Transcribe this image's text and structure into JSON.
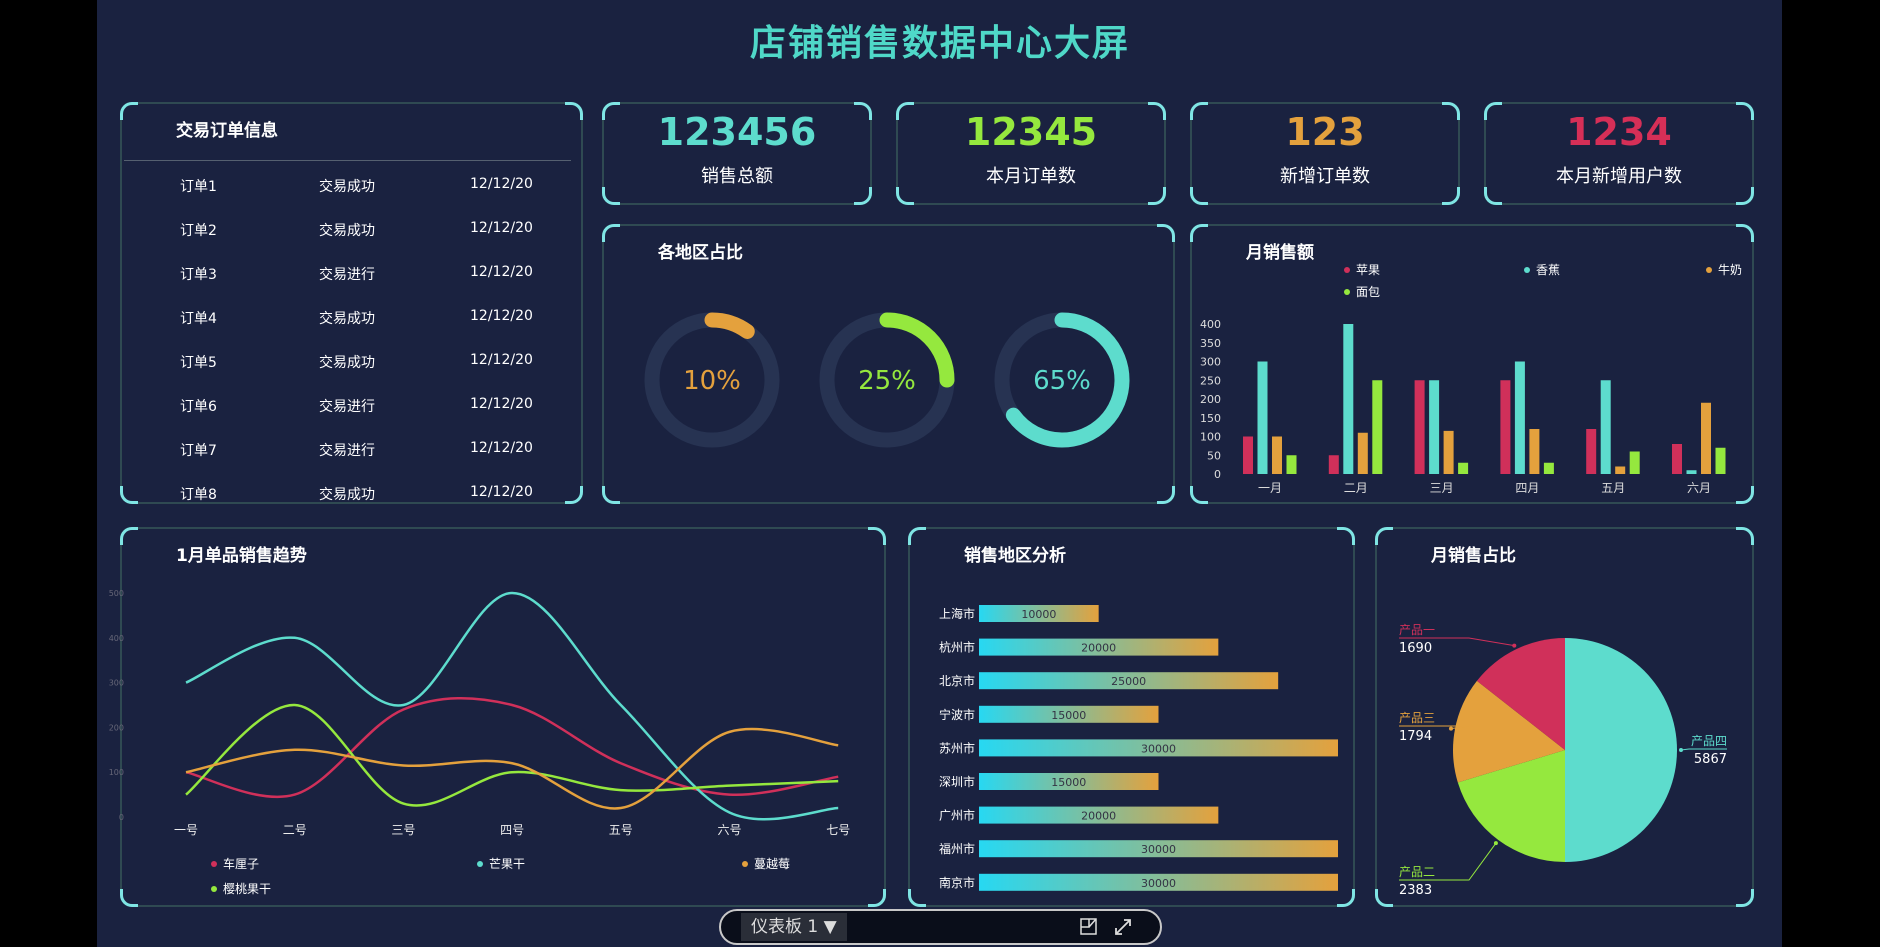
{
  "title": "店铺销售数据中心大屏",
  "orders": {
    "title": "交易订单信息",
    "rows": [
      {
        "id": "订单1",
        "status": "交易成功",
        "date": "12/12/20"
      },
      {
        "id": "订单2",
        "status": "交易成功",
        "date": "12/12/20"
      },
      {
        "id": "订单3",
        "status": "交易进行",
        "date": "12/12/20"
      },
      {
        "id": "订单4",
        "status": "交易成功",
        "date": "12/12/20"
      },
      {
        "id": "订单5",
        "status": "交易成功",
        "date": "12/12/20"
      },
      {
        "id": "订单6",
        "status": "交易进行",
        "date": "12/12/20"
      },
      {
        "id": "订单7",
        "status": "交易进行",
        "date": "12/12/20"
      },
      {
        "id": "订单8",
        "status": "交易成功",
        "date": "12/12/20"
      }
    ]
  },
  "kpis": [
    {
      "value": "123456",
      "label": "销售总额",
      "color": "#5ddccd"
    },
    {
      "value": "12345",
      "label": "本月订单数",
      "color": "#95e83e"
    },
    {
      "value": "123",
      "label": "新增订单数",
      "color": "#e4a13d"
    },
    {
      "value": "1234",
      "label": "本月新增用户数",
      "color": "#d62f57"
    }
  ],
  "region_ratio": {
    "title": "各地区占比",
    "items": [
      {
        "label": "10%",
        "value": 10,
        "color": "#e4a13d"
      },
      {
        "label": "25%",
        "value": 25,
        "color": "#95e83e"
      },
      {
        "label": "65%",
        "value": 65,
        "color": "#5ddccd"
      }
    ]
  },
  "chart_data": [
    {
      "type": "bar",
      "title": "月销售额",
      "categories": [
        "一月",
        "二月",
        "三月",
        "四月",
        "五月",
        "六月"
      ],
      "ylim": [
        0,
        400
      ],
      "yticks": [
        "0",
        "50",
        "100",
        "150",
        "200",
        "250",
        "300",
        "350",
        "400"
      ],
      "legend": "top",
      "series": [
        {
          "name": "苹果",
          "color": "#d0305a",
          "values": [
            100,
            50,
            250,
            250,
            120,
            80
          ]
        },
        {
          "name": "香蕉",
          "color": "#5ddccd",
          "values": [
            300,
            400,
            250,
            300,
            250,
            10
          ]
        },
        {
          "name": "牛奶",
          "color": "#e4a13d",
          "values": [
            100,
            110,
            115,
            120,
            20,
            190
          ]
        },
        {
          "name": "面包",
          "color": "#95e83e",
          "values": [
            50,
            250,
            30,
            30,
            60,
            70
          ]
        }
      ]
    },
    {
      "type": "line",
      "title": "1月单品销售趋势",
      "categories": [
        "一号",
        "二号",
        "三号",
        "四号",
        "五号",
        "六号",
        "七号"
      ],
      "ylim": [
        0,
        500
      ],
      "yticks": [
        "0",
        "100",
        "200",
        "300",
        "400",
        "500"
      ],
      "smooth": true,
      "legend": "bottom",
      "series": [
        {
          "name": "车厘子",
          "color": "#d0305a",
          "values": [
            100,
            50,
            240,
            250,
            120,
            50,
            90
          ]
        },
        {
          "name": "芒果干",
          "color": "#5ddccd",
          "values": [
            300,
            400,
            250,
            500,
            250,
            10,
            20
          ]
        },
        {
          "name": "樱桃果干",
          "color": "#95e83e",
          "values": [
            50,
            250,
            30,
            100,
            60,
            70,
            80
          ]
        },
        {
          "name": "蔓越莓",
          "color": "#e4a13d",
          "values": [
            100,
            150,
            115,
            120,
            20,
            190,
            160
          ]
        }
      ]
    },
    {
      "type": "bar",
      "orientation": "horizontal",
      "title": "销售地区分析",
      "categories": [
        "上海市",
        "杭州市",
        "北京市",
        "宁波市",
        "苏州市",
        "深圳市",
        "广州市",
        "福州市",
        "南京市"
      ],
      "values": [
        10000,
        20000,
        25000,
        15000,
        30000,
        15000,
        20000,
        30000,
        30000
      ],
      "gradient": [
        "#27d8f2",
        "#e4a13d"
      ]
    },
    {
      "type": "pie",
      "title": "月销售占比",
      "slices": [
        {
          "name": "产品四",
          "value": 5867,
          "color": "#5ddccd"
        },
        {
          "name": "产品二",
          "value": 2383,
          "color": "#95e83e"
        },
        {
          "name": "产品三",
          "value": 1794,
          "color": "#e4a13d"
        },
        {
          "name": "产品一",
          "value": 1690,
          "color": "#d0305a"
        }
      ]
    }
  ],
  "overlay": {
    "dashboard_label": "仪表板 1 ▼"
  }
}
